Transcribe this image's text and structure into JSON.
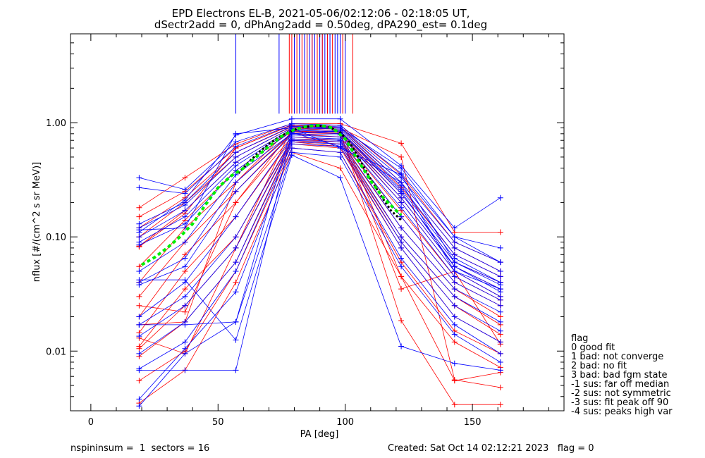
{
  "chart_data": {
    "type": "line",
    "title": "EPD Electrons EL-B, 2021-05-06/02:12:06 - 02:18:05 UT,",
    "subtitle": "dSectr2add = 0, dPhAng2add = 0.50deg, dPA290_est=   0.1deg",
    "xlabel": "PA [deg]",
    "ylabel": "nflux [#/(cm^2 s sr MeV)]",
    "xlim": [
      -8,
      186
    ],
    "ylim": [
      0.003,
      6.0
    ],
    "yscale": "log",
    "x_ticks": [
      {
        "value": 0,
        "label": "0"
      },
      {
        "value": 50,
        "label": "50"
      },
      {
        "value": 100,
        "label": "100"
      },
      {
        "value": 150,
        "label": "150"
      }
    ],
    "y_ticks": [
      {
        "value": 0.01,
        "label": "0.01"
      },
      {
        "value": 0.1,
        "label": "0.10"
      },
      {
        "value": 1.0,
        "label": "1.00"
      }
    ],
    "grid": false,
    "series_colors": {
      "blue": "#0000ff",
      "red": "#ff0000",
      "median": "#00ee00",
      "fit": "#000000"
    },
    "pa_bins": [
      19,
      37,
      57,
      79,
      98,
      122,
      143,
      161
    ],
    "blue_series": [
      [
        0.11,
        0.21,
        0.78,
        1.08,
        1.08,
        0.42,
        0.12,
        0.22
      ],
      [
        0.33,
        0.26,
        0.68,
        0.98,
        0.95,
        0.36,
        0.1,
        0.08
      ],
      [
        0.27,
        0.24,
        0.62,
        0.96,
        0.92,
        0.33,
        0.09,
        0.06
      ],
      [
        0.13,
        0.2,
        0.55,
        0.93,
        0.9,
        0.3,
        0.08,
        0.05
      ],
      [
        0.12,
        0.19,
        0.5,
        0.9,
        0.88,
        0.28,
        0.07,
        0.045
      ],
      [
        0.1,
        0.17,
        0.45,
        0.88,
        0.85,
        0.26,
        0.065,
        0.04
      ],
      [
        0.09,
        0.15,
        0.42,
        0.86,
        0.83,
        0.24,
        0.06,
        0.038
      ],
      [
        0.085,
        0.13,
        0.38,
        0.84,
        0.8,
        0.22,
        0.055,
        0.035
      ],
      [
        0.04,
        0.065,
        0.3,
        0.8,
        0.78,
        0.2,
        0.05,
        0.03
      ],
      [
        0.038,
        0.055,
        0.25,
        0.78,
        0.75,
        0.18,
        0.045,
        0.028
      ],
      [
        0.02,
        0.04,
        0.15,
        0.75,
        0.72,
        0.15,
        0.04,
        0.025
      ],
      [
        0.017,
        0.03,
        0.1,
        0.72,
        0.7,
        0.12,
        0.035,
        0.022
      ],
      [
        0.0135,
        0.025,
        0.08,
        0.7,
        0.68,
        0.1,
        0.03,
        0.018
      ],
      [
        0.0095,
        0.018,
        0.06,
        0.68,
        0.65,
        0.09,
        0.025,
        0.015
      ],
      [
        0.007,
        0.012,
        0.05,
        0.65,
        0.62,
        0.08,
        0.02,
        0.012
      ],
      [
        0.0038,
        0.0105,
        0.033,
        0.6,
        0.55,
        0.065,
        0.017,
        0.0095
      ],
      [
        0.0033,
        0.0095,
        0.018,
        0.55,
        0.5,
        0.055,
        0.014,
        0.008
      ],
      [
        0.042,
        0.042,
        0.0125,
        0.52,
        0.33,
        0.011,
        0.0078,
        0.0068
      ],
      [
        0.017,
        0.017,
        0.018,
        0.9,
        0.9,
        0.4,
        0.1,
        0.06
      ],
      [
        0.0068,
        0.0068,
        0.0068,
        0.82,
        0.62,
        0.3,
        0.05,
        0.035
      ],
      [
        0.115,
        0.12,
        0.8,
        0.9,
        0.6,
        0.35,
        0.06,
        0.04
      ],
      [
        0.05,
        0.09,
        0.35,
        0.8,
        0.85,
        0.25,
        0.055,
        0.033
      ]
    ],
    "red_series": [
      [
        0.18,
        0.33,
        0.65,
        0.98,
        0.98,
        0.66,
        0.11,
        0.11
      ],
      [
        0.15,
        0.25,
        0.6,
        0.95,
        0.95,
        0.35,
        0.09,
        0.06
      ],
      [
        0.12,
        0.22,
        0.55,
        0.92,
        0.92,
        0.3,
        0.08,
        0.05
      ],
      [
        0.1,
        0.2,
        0.5,
        0.9,
        0.88,
        0.27,
        0.07,
        0.045
      ],
      [
        0.083,
        0.17,
        0.45,
        0.88,
        0.85,
        0.24,
        0.06,
        0.04
      ],
      [
        0.055,
        0.14,
        0.38,
        0.85,
        0.82,
        0.22,
        0.055,
        0.035
      ],
      [
        0.04,
        0.12,
        0.3,
        0.82,
        0.8,
        0.2,
        0.05,
        0.03
      ],
      [
        0.03,
        0.09,
        0.25,
        0.8,
        0.75,
        0.17,
        0.045,
        0.028
      ],
      [
        0.02,
        0.07,
        0.2,
        0.75,
        0.7,
        0.15,
        0.04,
        0.025
      ],
      [
        0.0145,
        0.05,
        0.15,
        0.72,
        0.68,
        0.12,
        0.035,
        0.02
      ],
      [
        0.011,
        0.035,
        0.1,
        0.7,
        0.65,
        0.1,
        0.03,
        0.017
      ],
      [
        0.0105,
        0.025,
        0.08,
        0.68,
        0.62,
        0.09,
        0.025,
        0.014
      ],
      [
        0.009,
        0.018,
        0.06,
        0.65,
        0.6,
        0.08,
        0.02,
        0.012
      ],
      [
        0.0055,
        0.01,
        0.05,
        0.6,
        0.55,
        0.06,
        0.015,
        0.0095
      ],
      [
        0.0035,
        0.0068,
        0.04,
        0.55,
        0.4,
        0.045,
        0.012,
        0.0072
      ],
      [
        0.082,
        0.16,
        0.6,
        0.95,
        0.9,
        0.5,
        0.0056,
        0.0048
      ],
      [
        0.013,
        0.0095,
        0.08,
        0.9,
        0.85,
        0.0185,
        0.0034,
        0.0034
      ],
      [
        0.017,
        0.018,
        0.3,
        0.92,
        0.88,
        0.045,
        0.0055,
        0.0065
      ],
      [
        0.025,
        0.022,
        0.2,
        0.85,
        0.8,
        0.035,
        0.05,
        0.0115
      ]
    ],
    "median_curve": {
      "x": [
        20,
        25,
        30,
        35,
        40,
        45,
        50,
        55,
        60,
        65,
        70,
        75,
        80,
        85,
        90,
        95,
        100,
        105,
        110,
        115,
        120,
        122
      ],
      "y": [
        0.057,
        0.066,
        0.08,
        0.1,
        0.13,
        0.19,
        0.27,
        0.34,
        0.4,
        0.5,
        0.62,
        0.76,
        0.87,
        0.93,
        0.95,
        0.9,
        0.72,
        0.47,
        0.31,
        0.22,
        0.17,
        0.155
      ]
    },
    "fit_curve": {
      "x": [
        58,
        62,
        66,
        70,
        74,
        78,
        82,
        86,
        90,
        94,
        98,
        102,
        106,
        110,
        114,
        118,
        122
      ],
      "y": [
        0.36,
        0.45,
        0.55,
        0.65,
        0.75,
        0.83,
        0.9,
        0.93,
        0.94,
        0.91,
        0.82,
        0.66,
        0.46,
        0.32,
        0.23,
        0.17,
        0.14
      ]
    },
    "top_blue_lines": [
      57,
      74,
      80,
      82,
      84,
      85,
      86,
      87,
      88,
      89,
      90,
      91,
      92,
      93,
      94,
      96,
      97,
      98,
      100
    ],
    "top_red_lines": [
      78,
      79,
      81,
      83,
      85,
      87,
      89,
      91,
      93,
      95,
      99,
      103
    ]
  },
  "legend": {
    "title": "flag",
    "items": [
      " 0 good fit",
      " 1 bad: not converge",
      " 2 bad: no fit",
      " 3 bad: bad fgm state",
      "-1 sus: far off median",
      "-2 sus: not symmetric",
      "-3 sus: fit peak off 90",
      "-4 sus: peaks high var"
    ]
  },
  "footer": {
    "left": "nspininsum =  1  sectors = 16",
    "right": "Created: Sat Oct 14 02:12:21 2023   flag = 0"
  }
}
